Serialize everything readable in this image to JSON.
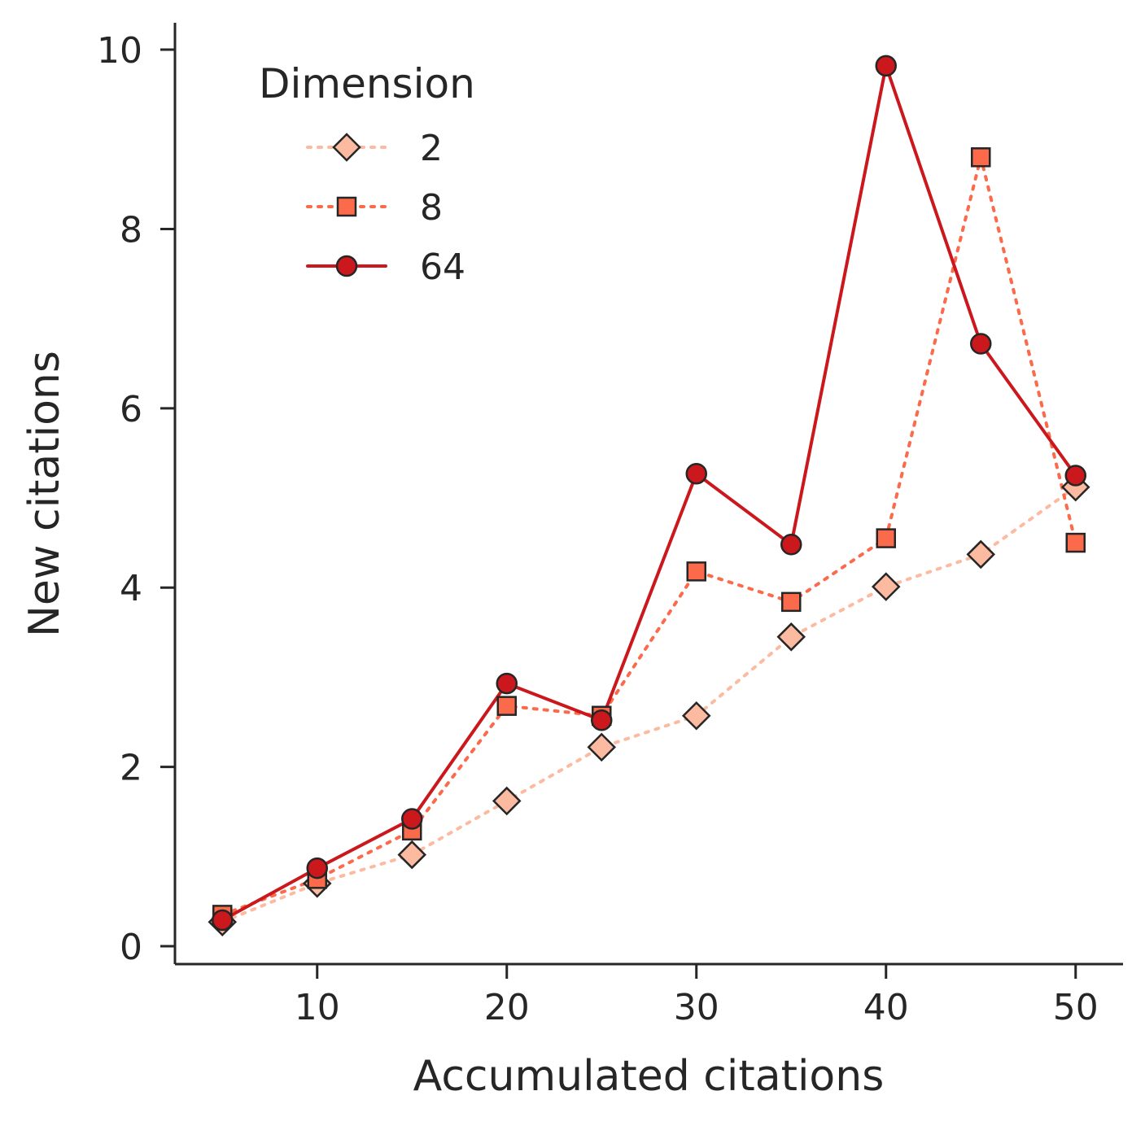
{
  "chart_data": {
    "type": "line",
    "xlabel": "Accumulated citations",
    "ylabel": "New citations",
    "xlim": [
      2.5,
      52.5
    ],
    "ylim": [
      -0.2,
      10.3
    ],
    "xticks": [
      10,
      20,
      30,
      40,
      50
    ],
    "yticks": [
      0,
      2,
      4,
      6,
      8,
      10
    ],
    "grid": false,
    "legend": {
      "title": "Dimension",
      "placement": "top-left"
    },
    "x": [
      5,
      10,
      15,
      20,
      25,
      30,
      35,
      40,
      45,
      50
    ],
    "series": [
      {
        "name": "2",
        "marker": "diamond",
        "line_style": "dotted",
        "color": "#fcbba1",
        "values": [
          0.27,
          0.7,
          1.02,
          1.62,
          2.22,
          2.57,
          3.45,
          4.01,
          4.37,
          5.12
        ]
      },
      {
        "name": "8",
        "marker": "square",
        "line_style": "dotted",
        "color": "#fb6a4a",
        "values": [
          0.35,
          0.75,
          1.29,
          2.68,
          2.57,
          4.18,
          3.84,
          4.55,
          8.8,
          4.5
        ]
      },
      {
        "name": "64",
        "marker": "circle",
        "line_style": "solid",
        "color": "#cb181d",
        "values": [
          0.29,
          0.87,
          1.42,
          2.93,
          2.52,
          5.27,
          4.48,
          9.82,
          6.72,
          5.25
        ]
      }
    ]
  }
}
